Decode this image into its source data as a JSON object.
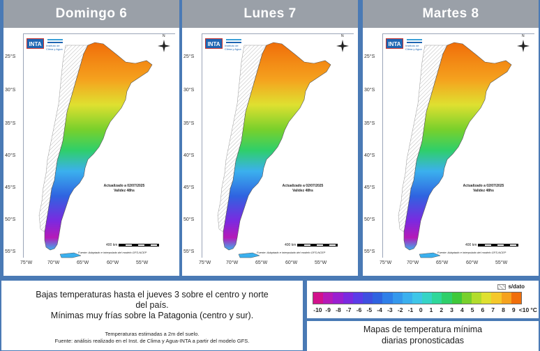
{
  "panels": [
    {
      "day": "Domingo 6"
    },
    {
      "day": "Lunes 7"
    },
    {
      "day": "Martes 8"
    }
  ],
  "map": {
    "logo_text": "INTA",
    "logo_subtitle": "Instituto de Clima y Agua",
    "compass_label": "N",
    "updated_line1": "Actualizado a 02/07/2025",
    "updated_line2": "Validez 48hs",
    "scale_label": "400 km",
    "source_text": "Fuente: Adaptado e interpolado del modelo GFS-NCEP",
    "lat_labels": [
      "25°S",
      "30°S",
      "35°S",
      "40°S",
      "45°S",
      "50°S",
      "55°S"
    ],
    "lon_labels": [
      "75°W",
      "70°W",
      "65°W",
      "60°W",
      "55°W"
    ]
  },
  "info": {
    "line1": "Bajas temperaturas hasta el jueves 3 sobre el centro y norte",
    "line2": "del país.",
    "line3": "Mínimas muy frías sobre la Patagonia (centro y sur).",
    "foot1": "Temperaturas estimadas a 2m del suelo.",
    "foot2": "Fuente: análisis realizado en el Inst. de Clima y Agua-INTA a partir del modelo GFS."
  },
  "legend": {
    "no_data_label": "s/dato",
    "labels": [
      "-10",
      "-9",
      "-8",
      "-7",
      "-6",
      "-5",
      "-4",
      "-3",
      "-2",
      "-1",
      "0",
      "1",
      "2",
      "3",
      "4",
      "5",
      "6",
      "7",
      "8",
      "9",
      "<10"
    ],
    "unit": "°C",
    "colors": [
      "#d2128c",
      "#b51ab8",
      "#9a1fd0",
      "#7b2ae0",
      "#5b3ce8",
      "#3f4fe0",
      "#2f63e0",
      "#2f7fe8",
      "#3598ec",
      "#3bb0ee",
      "#3fc6e8",
      "#36d4c6",
      "#2fd79a",
      "#2fcf6a",
      "#3fc83a",
      "#78d02c",
      "#b2dc2c",
      "#dfe030",
      "#f5c82a",
      "#f5a21e",
      "#f06e0a"
    ]
  },
  "caption": {
    "line1": "Mapas de temperatura mínima",
    "line2": "diarias pronosticadas"
  }
}
